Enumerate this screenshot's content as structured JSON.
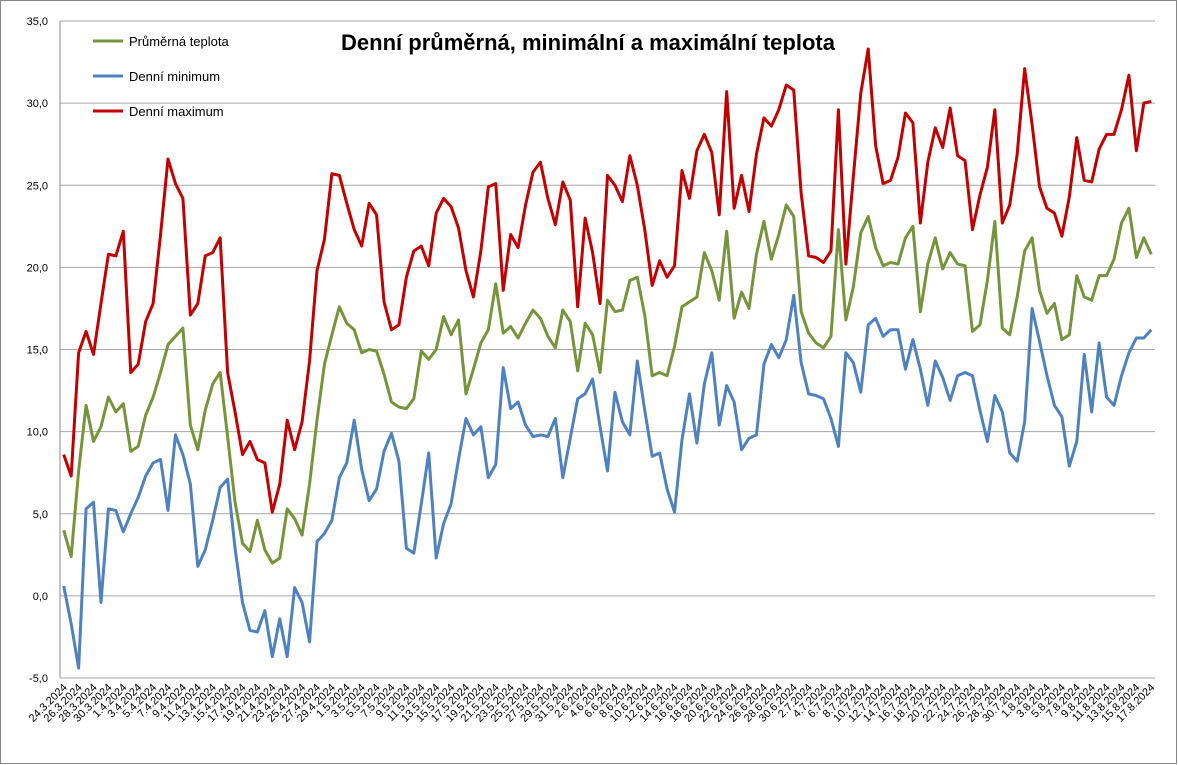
{
  "chart_data": {
    "type": "line",
    "title": "Denní průměrná, minimální a maximální teplota",
    "categories": [
      "24.3.2024",
      null,
      "26.3.2024",
      null,
      "28.3.2024",
      null,
      "30.3.2024",
      null,
      "1.4.2024",
      null,
      "3.4.2024",
      null,
      "5.4.2024",
      null,
      "7.4.2024",
      null,
      "9.4.2024",
      null,
      "11.4.2024",
      null,
      "13.4.2024",
      null,
      "15.4.2024",
      null,
      "17.4.2024",
      null,
      "19.4.2024",
      null,
      "21.4.2024",
      null,
      "23.4.2024",
      null,
      "25.4.2024",
      null,
      "27.4.2024",
      null,
      "29.4.2024",
      null,
      "1.5.2024",
      null,
      "3.5.2024",
      null,
      "5.5.2024",
      null,
      "7.5.2024",
      null,
      "9.5.2024",
      null,
      "11.5.2024",
      null,
      "13.5.2024",
      null,
      "15.5.2024",
      null,
      "17.5.2024",
      null,
      "19.5.2024",
      null,
      "21.5.2024",
      null,
      "23.5.2024",
      null,
      "25.5.2024",
      null,
      "27.5.2024",
      null,
      "29.5.2024",
      null,
      "31.5.2024",
      null,
      "2.6.2024",
      null,
      "4.6.2024",
      null,
      "6.6.2024",
      null,
      "8.6.2024",
      null,
      "10.6.2024",
      null,
      "12.6.2024",
      null,
      "14.6.2024",
      null,
      "16.6.2024",
      null,
      "18.6.2024",
      null,
      "20.6.2024",
      null,
      "22.6.2024",
      null,
      "24.6.2024",
      null,
      "26.6.2024",
      null,
      "28.6.2024",
      null,
      "30.6.2024",
      null,
      "2.7.2024",
      null,
      "4.7.2024",
      null,
      "6.7.2024",
      null,
      "8.7.2024",
      null,
      "10.7.2024",
      null,
      "12.7.2024",
      null,
      "14.7.2024",
      null,
      "16.7.2024",
      null,
      "18.7.2024",
      null,
      "20.7.2024",
      null,
      "22.7.2024",
      null,
      "24.7.2024",
      null,
      "26.7.2024",
      null,
      "28.7.2024",
      null,
      "30.7.2024",
      null,
      "1.8.2024",
      null,
      "3.8.2024",
      null,
      "5.8.2024",
      null,
      "7.8.2024",
      null,
      "9.8.2024",
      null,
      "11.8.2024",
      null,
      "13.8.2024",
      null,
      "15.8.2024",
      null,
      "17.8.2024"
    ],
    "series": [
      {
        "name": "Průměrná teplota",
        "color": "#77933c",
        "values": [
          4.0,
          2.4,
          7.6,
          11.6,
          9.4,
          10.3,
          12.1,
          11.2,
          11.7,
          8.8,
          9.1,
          11.0,
          12.1,
          13.6,
          15.3,
          15.8,
          16.3,
          10.4,
          8.9,
          11.3,
          12.9,
          13.6,
          9.7,
          5.7,
          3.2,
          2.7,
          4.6,
          2.8,
          2.0,
          2.3,
          5.3,
          4.7,
          3.7,
          6.8,
          10.7,
          14.1,
          15.9,
          17.6,
          16.6,
          16.2,
          14.8,
          15.0,
          14.9,
          13.5,
          11.8,
          11.5,
          11.4,
          12.0,
          14.9,
          14.4,
          15.0,
          17.0,
          15.9,
          16.8,
          12.3,
          13.8,
          15.4,
          16.2,
          19.0,
          16.0,
          16.4,
          15.7,
          16.6,
          17.4,
          16.9,
          15.8,
          15.1,
          17.4,
          16.7,
          13.7,
          16.6,
          15.9,
          13.6,
          18.0,
          17.3,
          17.4,
          19.2,
          19.4,
          17.1,
          13.4,
          13.6,
          13.4,
          15.2,
          17.6,
          17.9,
          18.2,
          20.9,
          19.8,
          18.0,
          22.2,
          16.9,
          18.5,
          17.5,
          20.8,
          22.8,
          20.5,
          22.0,
          23.8,
          23.1,
          17.3,
          16.0,
          15.4,
          15.1,
          15.8,
          22.3,
          16.8,
          18.8,
          22.1,
          23.1,
          21.2,
          20.1,
          20.3,
          20.2,
          21.8,
          22.5,
          17.3,
          20.2,
          21.8,
          19.9,
          20.9,
          20.2,
          20.1,
          16.1,
          16.5,
          19.2,
          22.8,
          16.3,
          15.9,
          18.2,
          21.0,
          21.8,
          18.6,
          17.2,
          17.8,
          15.6,
          15.9,
          19.5,
          18.2,
          18.0,
          19.5,
          19.5,
          20.5,
          22.7,
          23.6,
          20.6,
          21.8,
          20.8
        ]
      },
      {
        "name": "Denní minimum",
        "color": "#4f81bd",
        "values": [
          0.6,
          -1.7,
          -4.4,
          5.3,
          5.7,
          -0.4,
          5.3,
          5.2,
          3.9,
          5.0,
          6.0,
          7.3,
          8.1,
          8.3,
          5.2,
          9.8,
          8.6,
          6.8,
          1.8,
          2.8,
          4.6,
          6.6,
          7.1,
          2.9,
          -0.4,
          -2.1,
          -2.2,
          -0.9,
          -3.7,
          -1.4,
          -3.7,
          0.5,
          -0.4,
          -2.8,
          3.3,
          3.8,
          4.6,
          7.2,
          8.1,
          10.7,
          7.7,
          5.8,
          6.5,
          8.8,
          9.9,
          8.2,
          2.9,
          2.6,
          5.6,
          8.7,
          2.3,
          4.4,
          5.6,
          8.3,
          10.8,
          9.8,
          10.3,
          7.2,
          8.0,
          13.9,
          11.4,
          11.8,
          10.4,
          9.7,
          9.8,
          9.7,
          10.8,
          7.2,
          9.6,
          12.0,
          12.3,
          13.2,
          10.3,
          7.6,
          12.4,
          10.6,
          9.8,
          14.3,
          11.3,
          8.5,
          8.7,
          6.5,
          5.1,
          9.5,
          12.3,
          9.3,
          12.9,
          14.8,
          10.4,
          12.8,
          11.8,
          8.9,
          9.6,
          9.8,
          14.1,
          15.3,
          14.5,
          15.6,
          18.3,
          14.2,
          12.3,
          12.2,
          12.0,
          10.8,
          9.1,
          14.8,
          14.2,
          12.4,
          16.5,
          16.9,
          15.8,
          16.2,
          16.2,
          13.8,
          15.6,
          13.8,
          11.6,
          14.3,
          13.3,
          11.9,
          13.4,
          13.6,
          13.4,
          11.3,
          9.4,
          12.2,
          11.2,
          8.7,
          8.2,
          10.6,
          17.5,
          15.5,
          13.4,
          11.6,
          10.9,
          7.9,
          9.4,
          14.7,
          11.2,
          15.4,
          12.1,
          11.6,
          13.4,
          14.8,
          15.7,
          15.7,
          16.2
        ]
      },
      {
        "name": "Denní maximum",
        "color": "#c00000",
        "values": [
          8.6,
          7.3,
          14.8,
          16.1,
          14.7,
          17.8,
          20.8,
          20.7,
          22.2,
          13.6,
          14.1,
          16.7,
          17.8,
          22.0,
          26.6,
          25.1,
          24.2,
          17.1,
          17.8,
          20.7,
          20.9,
          21.8,
          13.6,
          11.2,
          8.6,
          9.4,
          8.3,
          8.1,
          5.1,
          6.8,
          10.7,
          8.9,
          10.6,
          14.3,
          19.8,
          21.7,
          25.7,
          25.6,
          23.9,
          22.3,
          21.3,
          23.9,
          23.2,
          17.9,
          16.2,
          16.5,
          19.4,
          21.0,
          21.3,
          20.1,
          23.3,
          24.2,
          23.7,
          22.4,
          19.8,
          18.2,
          21.0,
          24.9,
          25.1,
          18.6,
          22.0,
          21.2,
          23.8,
          25.8,
          26.4,
          24.2,
          22.6,
          25.2,
          24.1,
          17.6,
          23.0,
          20.9,
          17.8,
          25.6,
          25.0,
          24.0,
          26.8,
          25.0,
          22.3,
          18.9,
          20.4,
          19.4,
          20.1,
          25.9,
          24.2,
          27.1,
          28.1,
          27.0,
          23.2,
          30.7,
          23.6,
          25.6,
          23.4,
          26.9,
          29.1,
          28.6,
          29.6,
          31.1,
          30.8,
          24.5,
          20.7,
          20.6,
          20.3,
          21.0,
          29.6,
          20.2,
          25.5,
          30.6,
          33.3,
          27.4,
          25.1,
          25.3,
          26.7,
          29.4,
          28.8,
          22.7,
          26.4,
          28.5,
          27.3,
          29.7,
          26.8,
          26.5,
          22.3,
          24.4,
          26.1,
          29.6,
          22.7,
          23.8,
          26.9,
          32.1,
          28.7,
          24.9,
          23.6,
          23.3,
          21.9,
          24.3,
          27.9,
          25.3,
          25.2,
          27.2,
          28.1,
          28.1,
          29.6,
          31.7,
          27.1,
          30.0,
          30.1
        ]
      }
    ],
    "ylim": [
      -5,
      35
    ],
    "yticks": [
      {
        "value": -5,
        "label": "-5,0"
      },
      {
        "value": 0,
        "label": "0,0"
      },
      {
        "value": 5,
        "label": "5,0"
      },
      {
        "value": 10,
        "label": "10,0"
      },
      {
        "value": 15,
        "label": "15,0"
      },
      {
        "value": 20,
        "label": "20,0"
      },
      {
        "value": 25,
        "label": "25,0"
      },
      {
        "value": 30,
        "label": "30,0"
      },
      {
        "value": 35,
        "label": "35,0"
      }
    ],
    "grid": true,
    "legend": "top-left"
  }
}
